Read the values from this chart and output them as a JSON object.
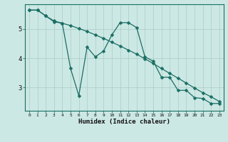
{
  "xlabel": "Humidex (Indice chaleur)",
  "bg_color": "#cce8e4",
  "line_color": "#1a6e64",
  "grid_color": "#aaccc8",
  "line1_x": [
    0,
    1,
    2,
    3,
    4,
    5,
    6,
    7,
    8,
    9,
    10,
    11,
    12,
    13,
    14,
    15,
    16,
    17,
    18,
    19,
    20,
    21,
    22,
    23
  ],
  "line1_y": [
    5.65,
    5.65,
    5.45,
    5.25,
    5.2,
    3.65,
    2.72,
    4.38,
    4.05,
    4.25,
    4.8,
    5.22,
    5.22,
    5.05,
    4.05,
    3.9,
    3.35,
    3.35,
    2.9,
    2.9,
    2.65,
    2.62,
    2.45,
    2.45
  ],
  "line2_x": [
    0,
    1,
    2,
    3,
    4,
    5,
    6,
    7,
    8,
    9,
    10,
    11,
    12,
    13,
    14,
    15,
    16,
    17,
    18,
    19,
    20,
    21,
    22,
    23
  ],
  "line2_y": [
    5.65,
    5.65,
    5.45,
    5.28,
    5.2,
    5.12,
    5.02,
    4.92,
    4.8,
    4.68,
    4.55,
    4.42,
    4.28,
    4.14,
    3.98,
    3.82,
    3.65,
    3.48,
    3.32,
    3.15,
    2.98,
    2.82,
    2.68,
    2.52
  ],
  "xlim": [
    -0.5,
    23.5
  ],
  "ylim": [
    2.2,
    5.85
  ],
  "yticks": [
    3,
    4,
    5
  ],
  "xticks": [
    0,
    1,
    2,
    3,
    4,
    5,
    6,
    7,
    8,
    9,
    10,
    11,
    12,
    13,
    14,
    15,
    16,
    17,
    18,
    19,
    20,
    21,
    22,
    23
  ],
  "markersize": 2.5,
  "linewidth": 0.9
}
